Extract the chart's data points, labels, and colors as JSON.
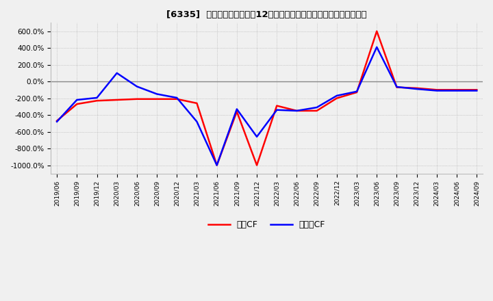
{
  "title": "[6335]  キャッシュフローの12か月移動合計の対前年同期増減率の推移",
  "legend_labels": [
    "営業CF",
    "フリーCF"
  ],
  "line_colors": [
    "#ff0000",
    "#0000ff"
  ],
  "ylim": [
    -1100,
    700
  ],
  "yticks": [
    600,
    400,
    200,
    0,
    -200,
    -400,
    -600,
    -800,
    -1000
  ],
  "ytick_labels": [
    "600.0%",
    "400.0%",
    "200.0%",
    "0.0%",
    "-200.0%",
    "-400.0%",
    "-600.0%",
    "-800.0%",
    "-1000.0%"
  ],
  "background_color": "#f0f0f0",
  "plot_bg_color": "#f0f0f0",
  "grid_color": "#ffffff",
  "zero_line_color": "#888888",
  "x_labels": [
    "2019/06",
    "2019/09",
    "2019/12",
    "2020/03",
    "2020/06",
    "2020/09",
    "2020/12",
    "2021/03",
    "2021/06",
    "2021/09",
    "2021/12",
    "2022/03",
    "2022/06",
    "2022/09",
    "2022/12",
    "2023/03",
    "2023/06",
    "2023/09",
    "2023/12",
    "2024/03",
    "2024/06",
    "2024/09"
  ],
  "operating_cf": [
    -470,
    -270,
    -230,
    -220,
    -210,
    -210,
    -210,
    -260,
    -1000,
    -360,
    -1000,
    -290,
    -350,
    -350,
    -200,
    -130,
    600,
    -70,
    -80,
    -100,
    -100,
    -100
  ],
  "free_cf": [
    -480,
    -220,
    -195,
    100,
    -60,
    -150,
    -195,
    -480,
    -1000,
    -330,
    -660,
    -340,
    -350,
    -310,
    -170,
    -120,
    410,
    -65,
    -90,
    -110,
    -110,
    -110
  ]
}
